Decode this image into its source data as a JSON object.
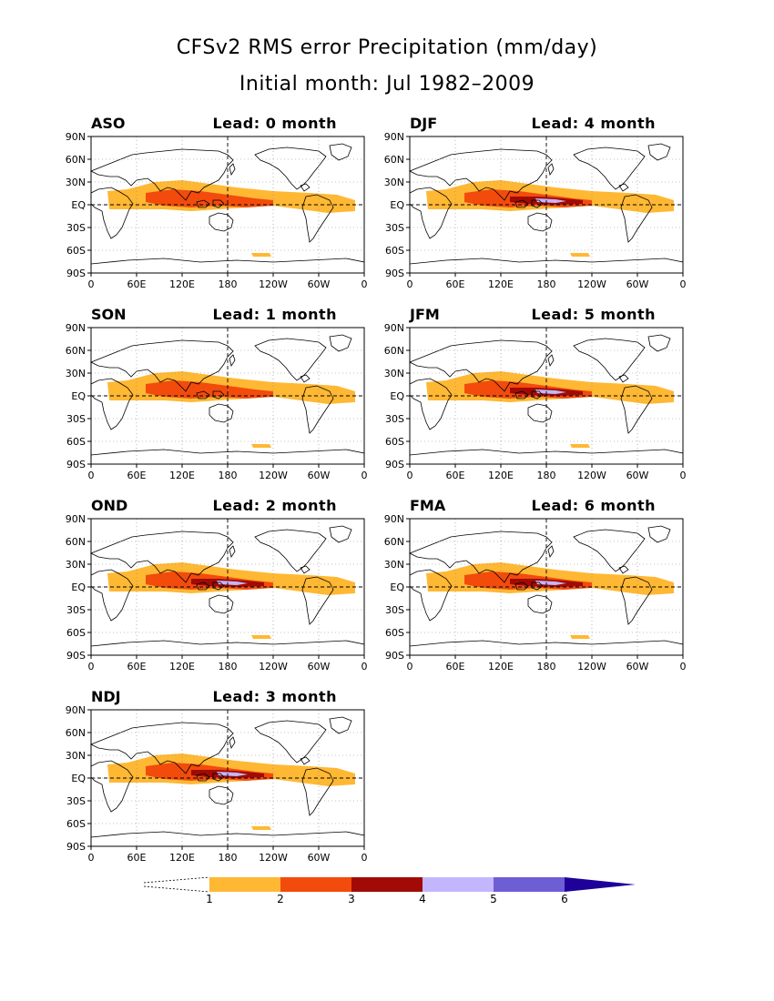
{
  "title_line1": "CFSv2 RMS error Precipitation (mm/day)",
  "title_line2": "Initial month: Jul 1982–2009",
  "y_tick_labels": [
    "90N",
    "60N",
    "30N",
    "EQ",
    "30S",
    "60S",
    "90S"
  ],
  "x_tick_labels": [
    "0",
    "60E",
    "120E",
    "180",
    "120W",
    "60W",
    "0"
  ],
  "panels": [
    {
      "season": "ASO",
      "lead": "Lead: 0 month",
      "max_level": 2
    },
    {
      "season": "DJF",
      "lead": "Lead: 4 month",
      "max_level": 4
    },
    {
      "season": "SON",
      "lead": "Lead: 1 month",
      "max_level": 2
    },
    {
      "season": "JFM",
      "lead": "Lead: 5 month",
      "max_level": 4
    },
    {
      "season": "OND",
      "lead": "Lead: 2 month",
      "max_level": 4
    },
    {
      "season": "FMA",
      "lead": "Lead: 6 month",
      "max_level": 4
    },
    {
      "season": "NDJ",
      "lead": "Lead: 3 month",
      "max_level": 4
    }
  ],
  "colorbar": {
    "levels": [
      "1",
      "2",
      "3",
      "4",
      "5",
      "6"
    ],
    "colors": [
      "#ffb833",
      "#f24b0c",
      "#a10a06",
      "#c4b6fc",
      "#6e5ed6",
      "#1f0099"
    ]
  }
}
